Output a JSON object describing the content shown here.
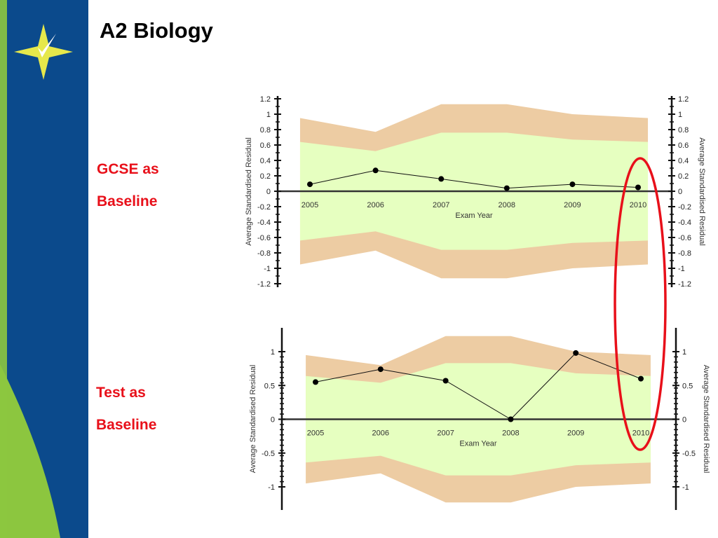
{
  "slide": {
    "title": "A2 Biology"
  },
  "labels": {
    "top": [
      "GCSE as",
      "Baseline"
    ],
    "bottom": [
      "Test as",
      "Baseline"
    ]
  },
  "colors": {
    "sidebar_blue": "#0b4a8c",
    "sidebar_green": "#8cc63f",
    "logo_yellow": "#e6e84b",
    "inner_band": "#e6ffc0",
    "outer_band": "#edcca3",
    "highlight_ring": "#e8101a",
    "label_red": "#e8101a"
  },
  "chart_data": [
    {
      "type": "line",
      "title": "",
      "xlabel": "Exam Year",
      "ylabel": "Average Standardised Residual",
      "x": [
        "2005",
        "2006",
        "2007",
        "2008",
        "2009",
        "2010"
      ],
      "series": [
        {
          "values": [
            0.09,
            0.27,
            0.16,
            0.04,
            0.09,
            0.05
          ]
        }
      ],
      "inner_band_upper": [
        0.64,
        0.52,
        0.76,
        0.76,
        0.67,
        0.64
      ],
      "outer_band_upper": [
        0.95,
        0.77,
        1.13,
        1.13,
        1.0,
        0.95
      ],
      "ylim": [
        -1.2,
        1.2
      ],
      "yticks": [
        "1.2",
        "1",
        "0.8",
        "0.6",
        "0.4",
        "0.2",
        "0",
        "-0.2",
        "-0.4",
        "-0.6",
        "-0.8",
        "-1",
        "-1.2"
      ],
      "grid": false,
      "legend": "none"
    },
    {
      "type": "line",
      "title": "",
      "xlabel": "Exam Year",
      "ylabel": "Average Standardised Residual",
      "x": [
        "2005",
        "2006",
        "2007",
        "2008",
        "2009",
        "2010"
      ],
      "series": [
        {
          "values": [
            0.55,
            0.74,
            0.57,
            0.0,
            0.98,
            0.6
          ]
        }
      ],
      "inner_band_upper": [
        0.64,
        0.54,
        0.83,
        0.83,
        0.68,
        0.64
      ],
      "outer_band_upper": [
        0.95,
        0.8,
        1.23,
        1.23,
        1.0,
        0.95
      ],
      "ylim": [
        -1.3,
        1.35
      ],
      "yticks": [
        "1",
        "0.5",
        "0",
        "-0.5",
        "-1"
      ],
      "grid": false,
      "legend": "none"
    }
  ]
}
